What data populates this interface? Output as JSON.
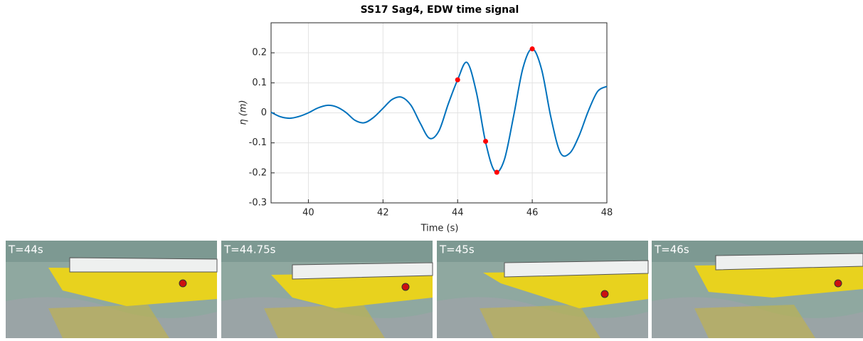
{
  "chart_data": {
    "type": "line",
    "title": "SS17 Sag4, EDW time signal",
    "x_label": "Time (s)",
    "y_label": "η (m)",
    "x": [
      39.0,
      39.25,
      39.5,
      39.75,
      40.0,
      40.25,
      40.5,
      40.75,
      41.0,
      41.25,
      41.5,
      41.75,
      42.0,
      42.25,
      42.5,
      42.75,
      43.0,
      43.25,
      43.5,
      43.75,
      44.0,
      44.25,
      44.5,
      44.75,
      45.0,
      45.25,
      45.5,
      45.75,
      46.0,
      46.25,
      46.5,
      46.75,
      47.0,
      47.25,
      47.5,
      47.75,
      48.0
    ],
    "series": [
      {
        "color": "#0072bd",
        "values": [
          0.002,
          -0.013,
          -0.018,
          -0.012,
          0.0,
          0.016,
          0.025,
          0.02,
          0.002,
          -0.025,
          -0.033,
          -0.015,
          0.015,
          0.045,
          0.052,
          0.025,
          -0.035,
          -0.085,
          -0.06,
          0.03,
          0.11,
          0.168,
          0.07,
          -0.098,
          -0.195,
          -0.157,
          -0.011,
          0.149,
          0.213,
          0.145,
          -0.015,
          -0.132,
          -0.135,
          -0.078,
          0.005,
          0.071,
          0.088
        ]
      }
    ],
    "markers": {
      "color": "#ff0000",
      "x": [
        44.0,
        44.75,
        45.05,
        46.0
      ],
      "values": [
        0.11,
        -0.095,
        -0.198,
        0.213
      ]
    },
    "xlim": [
      39,
      48
    ],
    "xticks": [
      40,
      42,
      44,
      46,
      48
    ],
    "ylim": [
      -0.3,
      0.3
    ],
    "yticks": [
      -0.3,
      -0.2,
      -0.1,
      0,
      0.1,
      0.2
    ],
    "grid": true
  },
  "panels": [
    {
      "label": "T=44s"
    },
    {
      "label": "T=44.75s"
    },
    {
      "label": "T=45s"
    },
    {
      "label": "T=46s"
    }
  ]
}
